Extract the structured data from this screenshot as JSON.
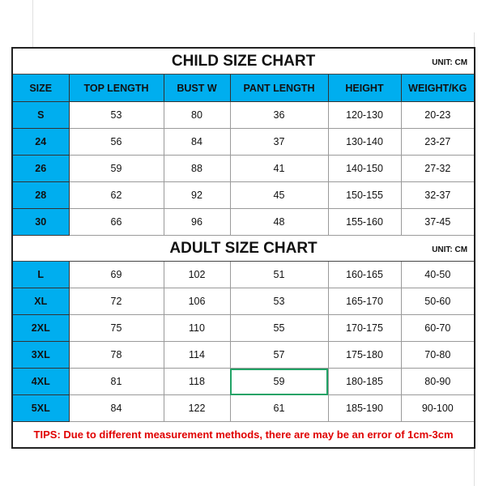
{
  "child": {
    "title": "CHILD SIZE CHART",
    "unit": "UNIT: CM",
    "headers": [
      "SIZE",
      "TOP LENGTH",
      "BUST W",
      "PANT LENGTH",
      "HEIGHT",
      "WEIGHT/KG"
    ],
    "rows": [
      [
        "S",
        "53",
        "80",
        "36",
        "120-130",
        "20-23"
      ],
      [
        "24",
        "56",
        "84",
        "37",
        "130-140",
        "23-27"
      ],
      [
        "26",
        "59",
        "88",
        "41",
        "140-150",
        "27-32"
      ],
      [
        "28",
        "62",
        "92",
        "45",
        "150-155",
        "32-37"
      ],
      [
        "30",
        "66",
        "96",
        "48",
        "155-160",
        "37-45"
      ]
    ]
  },
  "adult": {
    "title": "ADULT SIZE CHART",
    "unit": "UNIT: CM",
    "rows": [
      [
        "L",
        "69",
        "102",
        "51",
        "160-165",
        "40-50"
      ],
      [
        "XL",
        "72",
        "106",
        "53",
        "165-170",
        "50-60"
      ],
      [
        "2XL",
        "75",
        "110",
        "55",
        "170-175",
        "60-70"
      ],
      [
        "3XL",
        "78",
        "114",
        "57",
        "175-180",
        "70-80"
      ],
      [
        "4XL",
        "81",
        "118",
        "59",
        "180-185",
        "80-90"
      ],
      [
        "5XL",
        "84",
        "122",
        "61",
        "185-190",
        "90-100"
      ]
    ]
  },
  "tips": "TIPS: Due to different measurement methods, there are may be an error of 1cm-3cm",
  "colors": {
    "header_bg": "#00aeef",
    "tips": "#e00000",
    "selection": "#21a366"
  }
}
